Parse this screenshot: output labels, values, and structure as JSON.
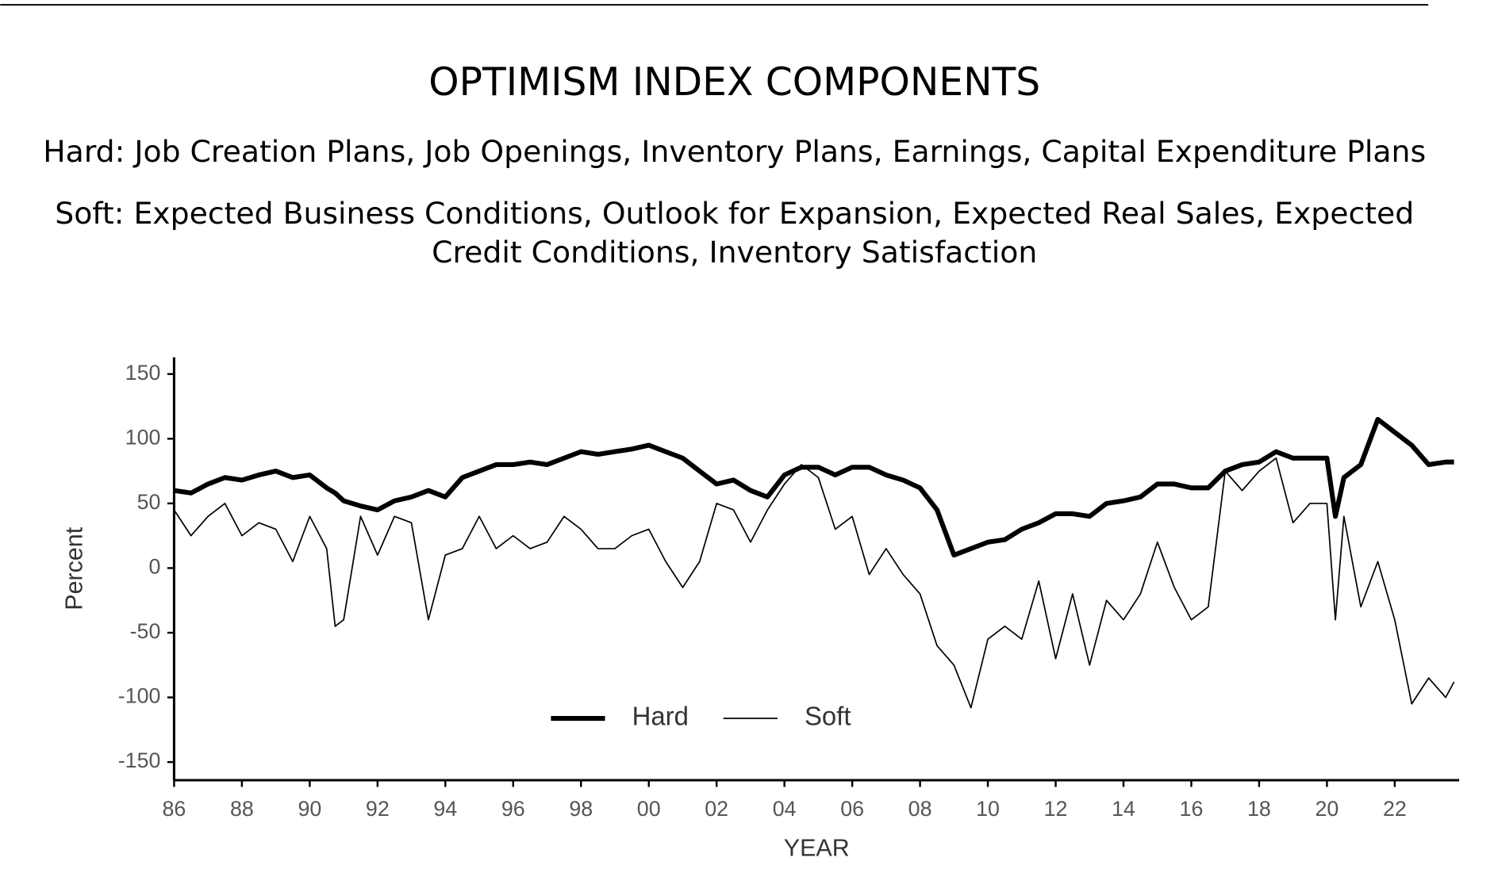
{
  "chart_data": {
    "type": "line",
    "title": "OPTIMISM INDEX COMPONENTS",
    "subtitle_lines": [
      "Hard: Job Creation Plans, Job Openings, Inventory Plans, Earnings, Capital Expenditure Plans",
      "Soft: Expected Business Conditions, Outlook for Expansion, Expected Real Sales, Expected",
      "Credit Conditions, Inventory Satisfaction"
    ],
    "x_label": "YEAR",
    "y_label": "Percent",
    "x": [
      1986,
      1986.5,
      1987,
      1987.5,
      1988,
      1988.5,
      1989,
      1989.5,
      1990,
      1990.5,
      1990.75,
      1991,
      1991.5,
      1992,
      1992.5,
      1993,
      1993.5,
      1994,
      1994.5,
      1995,
      1995.5,
      1996,
      1996.5,
      1997,
      1997.5,
      1998,
      1998.5,
      1999,
      1999.5,
      2000,
      2000.5,
      2001,
      2001.5,
      2002,
      2002.5,
      2003,
      2003.5,
      2004,
      2004.5,
      2005,
      2005.5,
      2006,
      2006.5,
      2007,
      2007.5,
      2008,
      2008.5,
      2009,
      2009.5,
      2010,
      2010.5,
      2011,
      2011.5,
      2012,
      2012.5,
      2013,
      2013.5,
      2014,
      2014.5,
      2015,
      2015.5,
      2016,
      2016.5,
      2017,
      2017.5,
      2018,
      2018.5,
      2019,
      2019.5,
      2020,
      2020.25,
      2020.5,
      2021,
      2021.5,
      2022,
      2022.5,
      2023,
      2023.5,
      2023.75
    ],
    "series": [
      {
        "name": "Hard",
        "color": "#000000",
        "line_width": 5,
        "values": [
          60,
          58,
          65,
          70,
          68,
          72,
          75,
          70,
          72,
          62,
          58,
          52,
          48,
          45,
          52,
          55,
          60,
          55,
          70,
          75,
          80,
          80,
          82,
          80,
          85,
          90,
          88,
          90,
          92,
          95,
          90,
          85,
          75,
          65,
          68,
          60,
          55,
          72,
          78,
          78,
          72,
          78,
          78,
          72,
          68,
          62,
          45,
          10,
          15,
          20,
          22,
          30,
          35,
          42,
          42,
          40,
          50,
          52,
          55,
          65,
          65,
          62,
          62,
          75,
          80,
          82,
          90,
          85,
          85,
          85,
          40,
          70,
          80,
          115,
          105,
          95,
          80,
          82,
          82
        ]
      },
      {
        "name": "Soft",
        "color": "#000000",
        "line_width": 1.4,
        "values": [
          45,
          25,
          40,
          50,
          25,
          35,
          30,
          5,
          40,
          15,
          -45,
          -40,
          40,
          10,
          40,
          35,
          -40,
          10,
          15,
          40,
          15,
          25,
          15,
          20,
          40,
          30,
          15,
          15,
          25,
          30,
          5,
          -15,
          5,
          50,
          45,
          20,
          45,
          65,
          80,
          70,
          30,
          40,
          -5,
          15,
          -5,
          -20,
          -60,
          -75,
          -108,
          -55,
          -45,
          -55,
          -10,
          -70,
          -20,
          -75,
          -25,
          -40,
          -20,
          20,
          -15,
          -40,
          -30,
          75,
          60,
          75,
          85,
          35,
          50,
          50,
          -40,
          40,
          -30,
          5,
          -40,
          -105,
          -85,
          -100,
          -88
        ]
      }
    ],
    "xlim": [
      1986,
      2023.9
    ],
    "xticks": [
      {
        "value": 1986,
        "label": "86"
      },
      {
        "value": 1988,
        "label": "88"
      },
      {
        "value": 1990,
        "label": "90"
      },
      {
        "value": 1992,
        "label": "92"
      },
      {
        "value": 1994,
        "label": "94"
      },
      {
        "value": 1996,
        "label": "96"
      },
      {
        "value": 1998,
        "label": "98"
      },
      {
        "value": 2000,
        "label": "00"
      },
      {
        "value": 2002,
        "label": "02"
      },
      {
        "value": 2004,
        "label": "04"
      },
      {
        "value": 2006,
        "label": "06"
      },
      {
        "value": 2008,
        "label": "08"
      },
      {
        "value": 2010,
        "label": "10"
      },
      {
        "value": 2012,
        "label": "12"
      },
      {
        "value": 2014,
        "label": "14"
      },
      {
        "value": 2016,
        "label": "16"
      },
      {
        "value": 2018,
        "label": "18"
      },
      {
        "value": 2020,
        "label": "20"
      },
      {
        "value": 2022,
        "label": "22"
      }
    ],
    "ylim": [
      -164,
      163
    ],
    "yticks": [
      150,
      100,
      50,
      0,
      -50,
      -100,
      -150
    ],
    "grid": false,
    "legend": "lower center"
  }
}
